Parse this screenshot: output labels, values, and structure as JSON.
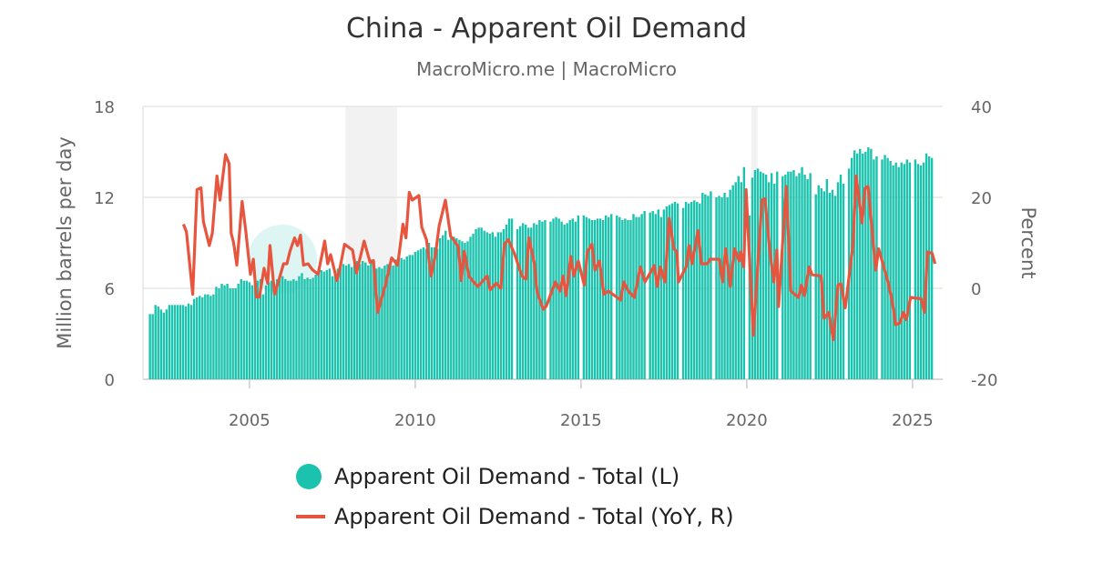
{
  "header": {
    "title": "China - Apparent Oil Demand",
    "subtitle": "MacroMicro.me | MacroMicro"
  },
  "chart_data": {
    "type": "bar+line",
    "title": "China - Apparent Oil Demand",
    "subtitle": "MacroMicro.me | MacroMicro",
    "ylabel_left": "Million barrels per day",
    "ylabel_right": "Percent",
    "ylim_left": [
      0,
      18
    ],
    "ylim_right": [
      -20,
      40
    ],
    "yticks_left": [
      "0",
      "6",
      "12",
      "18"
    ],
    "yticks_right": [
      "-20",
      "0",
      "20",
      "40"
    ],
    "xticks": [
      "2005",
      "2010",
      "2015",
      "2020",
      "2025"
    ],
    "xlim": [
      2001.79,
      2025.91
    ],
    "grid": true,
    "legend_position": "bottom",
    "shaded_periods": [
      [
        2007.9,
        2009.45
      ],
      [
        2020.14,
        2020.33
      ]
    ],
    "colors": {
      "bars": "#1bc3ae",
      "line": "#e8553e",
      "shade": "#f2f2f2"
    },
    "series": [
      {
        "name": "Apparent Oil Demand - Total (L)",
        "type": "bar",
        "axis": "left",
        "start_year": 2002,
        "monthly_by_year": [
          [
            4.3,
            4.3,
            4.9,
            4.8,
            4.6,
            4.4,
            4.6,
            4.9,
            4.9,
            4.9,
            4.9,
            4.9
          ],
          [
            4.9,
            4.8,
            5.0,
            4.9,
            5.3,
            5.4,
            5.5,
            5.4,
            5.6,
            5.6,
            5.5,
            5.6
          ],
          [
            6.1,
            6.0,
            6.3,
            6.2,
            6.3,
            6.0,
            6.0,
            6.0,
            6.3,
            6.6,
            6.5,
            6.5
          ],
          [
            6.4,
            6.2,
            6.6,
            6.5,
            6.6,
            5.6,
            6.2,
            6.4,
            6.5,
            6.3,
            6.6,
            6.8
          ],
          [
            6.8,
            6.6,
            6.5,
            6.5,
            6.6,
            6.5,
            6.8,
            7.0,
            6.6,
            6.7,
            6.6,
            6.7
          ],
          [
            6.9,
            7.0,
            7.2,
            7.1,
            7.2,
            7.3,
            6.8,
            7.0,
            7.3,
            7.5,
            7.6,
            7.5
          ],
          [
            7.6,
            7.4,
            7.7,
            7.8,
            7.6,
            7.8,
            7.7,
            7.5,
            7.9,
            7.8,
            7.3,
            7.4
          ],
          [
            7.3,
            7.5,
            7.6,
            7.5,
            7.5,
            7.9,
            8.0,
            8.0,
            7.9,
            8.1,
            8.2,
            8.2
          ],
          [
            8.4,
            8.5,
            8.6,
            8.7,
            8.6,
            9.0,
            8.7,
            8.7,
            8.6,
            9.3,
            9.5,
            9.8
          ],
          [
            9.2,
            9.3,
            9.4,
            9.3,
            9.2,
            9.1,
            9.0,
            9.1,
            9.4,
            9.6,
            9.9,
            10.0
          ],
          [
            10.0,
            9.8,
            9.7,
            9.6,
            9.7,
            9.4,
            9.7,
            9.7,
            9.9,
            10.2,
            10.6,
            10.6
          ],
          [
            null,
            9.9,
            10.1,
            10.3,
            10.2,
            10.0,
            10.0,
            10.3,
            10.2,
            10.5,
            10.4,
            10.5
          ],
          [
            null,
            10.4,
            10.6,
            10.7,
            10.6,
            10.4,
            10.2,
            10.3,
            10.5,
            10.6,
            10.4,
            10.8
          ],
          [
            null,
            10.8,
            10.7,
            10.6,
            10.5,
            10.5,
            10.6,
            10.6,
            10.5,
            10.8,
            10.7,
            10.9
          ],
          [
            null,
            10.8,
            10.7,
            10.5,
            10.6,
            10.5,
            10.5,
            10.9,
            10.7,
            10.7,
            10.9,
            11.1
          ],
          [
            null,
            11.0,
            11.1,
            10.9,
            11.2,
            10.7,
            11.2,
            11.4,
            11.5,
            11.6,
            11.7,
            11.6
          ],
          [
            null,
            11.3,
            11.7,
            11.6,
            11.7,
            11.8,
            11.7,
            11.6,
            12.3,
            12.2,
            12.1,
            12.4
          ],
          [
            null,
            12.0,
            12.1,
            12.0,
            12.3,
            12.0,
            12.5,
            12.8,
            13.0,
            13.4,
            13.0,
            14.0
          ],
          [
            null,
            10.8,
            13.3,
            13.8,
            13.9,
            13.7,
            13.6,
            13.5,
            13.0,
            13.6,
            12.9,
            13.7
          ],
          [
            null,
            13.4,
            13.5,
            13.7,
            13.7,
            13.8,
            13.4,
            13.6,
            14.0,
            13.5,
            13.2,
            13.6
          ],
          [
            null,
            12.2,
            12.8,
            12.6,
            12.4,
            13.2,
            12.3,
            12.5,
            12.1,
            13.0,
            13.5,
            12.9
          ],
          [
            null,
            13.9,
            14.6,
            15.1,
            14.9,
            15.2,
            14.9,
            15.0,
            15.3,
            15.2,
            14.5,
            14.7
          ],
          [
            null,
            14.5,
            14.8,
            14.6,
            14.4,
            14.1,
            14.3,
            14.0,
            14.3,
            14.2,
            14.5,
            14.3
          ],
          [
            null,
            14.5,
            14.2,
            14.1,
            14.3,
            14.9,
            14.7,
            14.6
          ]
        ]
      },
      {
        "name": "Apparent Oil Demand - Total (YoY, R)",
        "type": "line",
        "axis": "right",
        "points": [
          [
            2003.01,
            14.1
          ],
          [
            2003.1,
            12.4
          ],
          [
            2003.29,
            -1.3
          ],
          [
            2003.42,
            21.7
          ],
          [
            2003.54,
            22.1
          ],
          [
            2003.61,
            14.7
          ],
          [
            2003.79,
            9.4
          ],
          [
            2003.88,
            12.1
          ],
          [
            2004.02,
            24.7
          ],
          [
            2004.11,
            19.4
          ],
          [
            2004.28,
            29.4
          ],
          [
            2004.39,
            27.4
          ],
          [
            2004.45,
            12.1
          ],
          [
            2004.52,
            10.1
          ],
          [
            2004.62,
            5.1
          ],
          [
            2004.78,
            19.1
          ],
          [
            2004.89,
            12.7
          ],
          [
            2005.03,
            3.1
          ],
          [
            2005.12,
            6.4
          ],
          [
            2005.21,
            -1.9
          ],
          [
            2005.3,
            -1.9
          ],
          [
            2005.44,
            4.4
          ],
          [
            2005.55,
            1.1
          ],
          [
            2005.62,
            9.4
          ],
          [
            2005.76,
            -1.3
          ],
          [
            2005.9,
            2.1
          ],
          [
            2006.03,
            5.4
          ],
          [
            2006.13,
            5.4
          ],
          [
            2006.22,
            8.1
          ],
          [
            2006.36,
            11.1
          ],
          [
            2006.45,
            9.4
          ],
          [
            2006.54,
            11.7
          ],
          [
            2006.63,
            5.1
          ],
          [
            2006.77,
            5.4
          ],
          [
            2006.9,
            4.1
          ],
          [
            2007.07,
            3.1
          ],
          [
            2007.27,
            10.4
          ],
          [
            2007.36,
            5.4
          ],
          [
            2007.45,
            7.4
          ],
          [
            2007.64,
            1.7
          ],
          [
            2007.73,
            4.4
          ],
          [
            2007.87,
            9.7
          ],
          [
            2008.11,
            8.4
          ],
          [
            2008.23,
            3.4
          ],
          [
            2008.46,
            10.4
          ],
          [
            2008.64,
            5.7
          ],
          [
            2008.74,
            6.1
          ],
          [
            2008.87,
            -5.3
          ],
          [
            2009.1,
            0.7
          ],
          [
            2009.29,
            6.7
          ],
          [
            2009.47,
            5.1
          ],
          [
            2009.63,
            14.1
          ],
          [
            2009.72,
            11.1
          ],
          [
            2009.82,
            21.1
          ],
          [
            2009.91,
            19.4
          ],
          [
            2010.11,
            20.4
          ],
          [
            2010.2,
            13.4
          ],
          [
            2010.34,
            10.7
          ],
          [
            2010.48,
            2.7
          ],
          [
            2010.61,
            7.4
          ],
          [
            2010.72,
            13.7
          ],
          [
            2010.91,
            19.4
          ],
          [
            2011.07,
            11.4
          ],
          [
            2011.16,
            10.7
          ],
          [
            2011.3,
            9.1
          ],
          [
            2011.39,
            1.7
          ],
          [
            2011.48,
            8.1
          ],
          [
            2011.62,
            2.7
          ],
          [
            2011.76,
            1.4
          ],
          [
            2011.89,
            0.4
          ],
          [
            2012.17,
            2.7
          ],
          [
            2012.26,
            -0.3
          ],
          [
            2012.44,
            1.1
          ],
          [
            2012.58,
            0
          ],
          [
            2012.69,
            9.7
          ],
          [
            2012.81,
            10.7
          ],
          [
            2012.99,
            7.7
          ],
          [
            2013.22,
            2.7
          ],
          [
            2013.34,
            2
          ],
          [
            2013.43,
            11.1
          ],
          [
            2013.59,
            5.7
          ],
          [
            2013.68,
            -0.9
          ],
          [
            2013.86,
            -4.6
          ],
          [
            2013.95,
            -4
          ],
          [
            2014.23,
            1.4
          ],
          [
            2014.37,
            -0.6
          ],
          [
            2014.46,
            2.7
          ],
          [
            2014.55,
            -1.6
          ],
          [
            2014.69,
            7
          ],
          [
            2014.78,
            2.7
          ],
          [
            2014.92,
            6
          ],
          [
            2015.1,
            0.7
          ],
          [
            2015.19,
            8
          ],
          [
            2015.33,
            9.7
          ],
          [
            2015.42,
            4
          ],
          [
            2015.56,
            6
          ],
          [
            2015.69,
            -1.3
          ],
          [
            2015.83,
            -0.6
          ],
          [
            2016.2,
            -2.6
          ],
          [
            2016.29,
            1.4
          ],
          [
            2016.43,
            -0.6
          ],
          [
            2016.61,
            -2
          ],
          [
            2016.79,
            4.7
          ],
          [
            2016.93,
            1.4
          ],
          [
            2017.21,
            5
          ],
          [
            2017.3,
            0.4
          ],
          [
            2017.39,
            4.7
          ],
          [
            2017.53,
            1.4
          ],
          [
            2017.66,
            15.4
          ],
          [
            2017.8,
            8.7
          ],
          [
            2017.89,
            8
          ],
          [
            2017.94,
            1.4
          ],
          [
            2018.17,
            4.7
          ],
          [
            2018.26,
            9.4
          ],
          [
            2018.35,
            5.4
          ],
          [
            2018.53,
            12.7
          ],
          [
            2018.63,
            5.4
          ],
          [
            2018.81,
            5.4
          ],
          [
            2018.9,
            6.4
          ],
          [
            2019.17,
            6.4
          ],
          [
            2019.27,
            1.4
          ],
          [
            2019.36,
            8.7
          ],
          [
            2019.5,
            0.4
          ],
          [
            2019.63,
            8.7
          ],
          [
            2019.77,
            6
          ],
          [
            2019.82,
            8
          ],
          [
            2019.91,
            4.7
          ],
          [
            2019.98,
            21.7
          ],
          [
            2020.2,
            -10.3
          ],
          [
            2020.46,
            19.4
          ],
          [
            2020.55,
            19.7
          ],
          [
            2020.69,
            8.7
          ],
          [
            2020.82,
            1.4
          ],
          [
            2020.91,
            8.4
          ],
          [
            2020.96,
            -4
          ],
          [
            2021.19,
            22.4
          ],
          [
            2021.33,
            -0.6
          ],
          [
            2021.56,
            -2
          ],
          [
            2021.65,
            0.7
          ],
          [
            2021.74,
            -1.6
          ],
          [
            2021.88,
            4.7
          ],
          [
            2021.97,
            3
          ],
          [
            2022.24,
            2.7
          ],
          [
            2022.33,
            -6.6
          ],
          [
            2022.47,
            -5.3
          ],
          [
            2022.61,
            -11.3
          ],
          [
            2022.75,
            0.7
          ],
          [
            2022.84,
            1
          ],
          [
            2022.97,
            -4.3
          ],
          [
            2023.2,
            9.4
          ],
          [
            2023.3,
            24.7
          ],
          [
            2023.48,
            14.4
          ],
          [
            2023.57,
            22
          ],
          [
            2023.66,
            22.4
          ],
          [
            2023.89,
            4
          ],
          [
            2023.98,
            8.7
          ],
          [
            2024.26,
            1.4
          ],
          [
            2024.39,
            -3
          ],
          [
            2024.49,
            -8
          ],
          [
            2024.62,
            -7.6
          ],
          [
            2024.72,
            -5.3
          ],
          [
            2024.81,
            -6.9
          ],
          [
            2024.94,
            -2
          ],
          [
            2025.26,
            -2.3
          ],
          [
            2025.36,
            -5.3
          ],
          [
            2025.45,
            8
          ],
          [
            2025.59,
            7.7
          ],
          [
            2025.68,
            5.4
          ]
        ]
      }
    ]
  }
}
